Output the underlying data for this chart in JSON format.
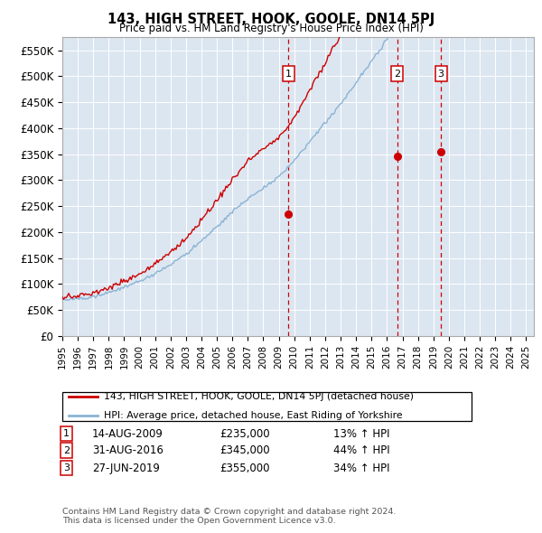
{
  "title": "143, HIGH STREET, HOOK, GOOLE, DN14 5PJ",
  "subtitle": "Price paid vs. HM Land Registry's House Price Index (HPI)",
  "background_color": "#ffffff",
  "plot_bg_color": "#dce6f1",
  "grid_color": "#ffffff",
  "red_line_color": "#cc0000",
  "blue_line_color": "#8ab4d4",
  "vline_color": "#cc0000",
  "marker_color": "#cc0000",
  "sale_dates": [
    2009.62,
    2016.66,
    2019.49
  ],
  "sale_prices": [
    235000,
    345000,
    355000
  ],
  "sale_labels": [
    "1",
    "2",
    "3"
  ],
  "sale_info": [
    {
      "label": "1",
      "date": "14-AUG-2009",
      "price": "£235,000",
      "hpi": "13% ↑ HPI"
    },
    {
      "label": "2",
      "date": "31-AUG-2016",
      "price": "£345,000",
      "hpi": "44% ↑ HPI"
    },
    {
      "label": "3",
      "date": "27-JUN-2019",
      "price": "£355,000",
      "hpi": "34% ↑ HPI"
    }
  ],
  "xmin": 1995.0,
  "xmax": 2025.5,
  "ymin": 0,
  "ymax": 575000,
  "yticks": [
    0,
    50000,
    100000,
    150000,
    200000,
    250000,
    300000,
    350000,
    400000,
    450000,
    500000,
    550000
  ],
  "ytick_labels": [
    "£0",
    "£50K",
    "£100K",
    "£150K",
    "£200K",
    "£250K",
    "£300K",
    "£350K",
    "£400K",
    "£450K",
    "£500K",
    "£550K"
  ],
  "xtick_years": [
    1995,
    1996,
    1997,
    1998,
    1999,
    2000,
    2001,
    2002,
    2003,
    2004,
    2005,
    2006,
    2007,
    2008,
    2009,
    2010,
    2011,
    2012,
    2013,
    2014,
    2015,
    2016,
    2017,
    2018,
    2019,
    2020,
    2021,
    2022,
    2023,
    2024,
    2025
  ],
  "legend_red_label": "143, HIGH STREET, HOOK, GOOLE, DN14 5PJ (detached house)",
  "legend_blue_label": "HPI: Average price, detached house, East Riding of Yorkshire",
  "footer": "Contains HM Land Registry data © Crown copyright and database right 2024.\nThis data is licensed under the Open Government Licence v3.0."
}
